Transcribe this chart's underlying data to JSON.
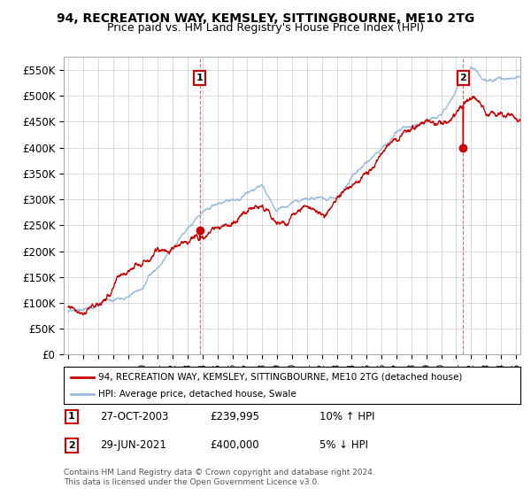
{
  "title": "94, RECREATION WAY, KEMSLEY, SITTINGBOURNE, ME10 2TG",
  "subtitle": "Price paid vs. HM Land Registry's House Price Index (HPI)",
  "ylabel_ticks": [
    "£0",
    "£50K",
    "£100K",
    "£150K",
    "£200K",
    "£250K",
    "£300K",
    "£350K",
    "£400K",
    "£450K",
    "£500K",
    "£550K"
  ],
  "ytick_values": [
    0,
    50000,
    100000,
    150000,
    200000,
    250000,
    300000,
    350000,
    400000,
    450000,
    500000,
    550000
  ],
  "ylim": [
    0,
    575000
  ],
  "xlim_start": 1994.7,
  "xlim_end": 2025.3,
  "legend_line1": "94, RECREATION WAY, KEMSLEY, SITTINGBOURNE, ME10 2TG (detached house)",
  "legend_line2": "HPI: Average price, detached house, Swale",
  "annotation1_label": "1",
  "annotation1_date": "27-OCT-2003",
  "annotation1_price": "£239,995",
  "annotation1_hpi": "10% ↑ HPI",
  "annotation1_year": 2003.82,
  "annotation1_value": 239995,
  "annotation2_label": "2",
  "annotation2_date": "29-JUN-2021",
  "annotation2_price": "£400,000",
  "annotation2_hpi": "5% ↓ HPI",
  "annotation2_year": 2021.46,
  "annotation2_value": 400000,
  "footnote": "Contains HM Land Registry data © Crown copyright and database right 2024.\nThis data is licensed under the Open Government Licence v3.0.",
  "red_color": "#cc0000",
  "blue_color": "#99bbdd",
  "background_color": "#ffffff",
  "grid_color": "#cccccc",
  "dashed_line_color": "#dd4444"
}
